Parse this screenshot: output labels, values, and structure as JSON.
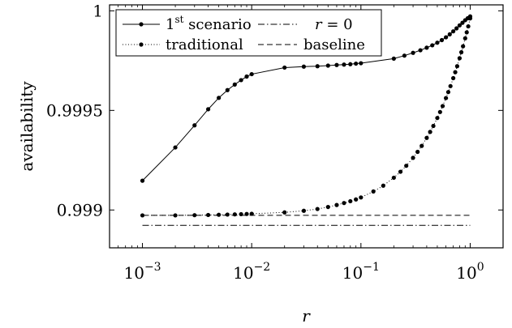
{
  "chart_data": {
    "type": "line",
    "xlabel": "r",
    "ylabel": "availability",
    "xscale": "log",
    "xlim": [
      0.0005,
      2.0
    ],
    "ylim": [
      0.99881,
      1.00003
    ],
    "x_ticks": [
      0.001,
      0.01,
      0.1,
      1
    ],
    "x_tick_labels": [
      {
        "base": "10",
        "exp": "−3"
      },
      {
        "base": "10",
        "exp": "−2"
      },
      {
        "base": "10",
        "exp": "−1"
      },
      {
        "base": "10",
        "exp": "0"
      }
    ],
    "y_ticks": [
      0.999,
      0.9995,
      1
    ],
    "y_tick_labels": [
      "0.999",
      "0.9995",
      "1"
    ],
    "grid": false,
    "legend_position": "top-left",
    "legend_columns": 2,
    "series": [
      {
        "name": "1st scenario",
        "legend_main": "1",
        "legend_sup": "st",
        "legend_rest": " scenario",
        "style": "solid-dots",
        "x": [
          0.001,
          0.002,
          0.003,
          0.004,
          0.005,
          0.006,
          0.007,
          0.008,
          0.009,
          0.01,
          0.02,
          0.03,
          0.04,
          0.05,
          0.06,
          0.07,
          0.08,
          0.09,
          0.1,
          0.2,
          0.25,
          0.3,
          0.35,
          0.4,
          0.45,
          0.5,
          0.55,
          0.6,
          0.65,
          0.7,
          0.75,
          0.8,
          0.85,
          0.9,
          0.95,
          1.0
        ],
        "y": [
          0.999147,
          0.999314,
          0.999425,
          0.999506,
          0.999563,
          0.999602,
          0.99963,
          0.999652,
          0.99967,
          0.999682,
          0.999715,
          0.99972,
          0.999722,
          0.999725,
          0.999728,
          0.99973,
          0.999732,
          0.999735,
          0.999737,
          0.99976,
          0.999775,
          0.999789,
          0.999802,
          0.999815,
          0.999827,
          0.99984,
          0.999853,
          0.999867,
          0.999882,
          0.999897,
          0.999912,
          0.999927,
          0.99994,
          0.999953,
          0.999963,
          0.999972
        ]
      },
      {
        "name": "r = 0",
        "legend_italic": "r",
        "legend_rest": " = 0",
        "style": "dash-dot",
        "x": [
          0.001,
          1.0
        ],
        "y": [
          0.998923,
          0.998923
        ]
      },
      {
        "name": "traditional",
        "style": "dotted-dots",
        "x": [
          0.001,
          0.002,
          0.003,
          0.004,
          0.005,
          0.006,
          0.007,
          0.008,
          0.009,
          0.01,
          0.02,
          0.03,
          0.04,
          0.05,
          0.06,
          0.07,
          0.08,
          0.09,
          0.1,
          0.13,
          0.16,
          0.2,
          0.23,
          0.26,
          0.3,
          0.33,
          0.36,
          0.4,
          0.43,
          0.46,
          0.5,
          0.53,
          0.56,
          0.6,
          0.63,
          0.66,
          0.7,
          0.73,
          0.76,
          0.8,
          0.83,
          0.86,
          0.9,
          0.93,
          0.96,
          1.0
        ],
        "y": [
          0.998973,
          0.998973,
          0.998974,
          0.998975,
          0.998976,
          0.998977,
          0.998978,
          0.998979,
          0.99898,
          0.998981,
          0.998988,
          0.998996,
          0.999005,
          0.999015,
          0.999025,
          0.999035,
          0.999044,
          0.999053,
          0.999063,
          0.999093,
          0.999122,
          0.999162,
          0.999192,
          0.999222,
          0.999262,
          0.999292,
          0.999322,
          0.999362,
          0.999392,
          0.999422,
          0.999462,
          0.999492,
          0.999522,
          0.999562,
          0.999592,
          0.999622,
          0.999662,
          0.999692,
          0.999722,
          0.999762,
          0.999792,
          0.999822,
          0.999862,
          0.999892,
          0.999922,
          0.999962
        ]
      },
      {
        "name": "baseline",
        "style": "dashed",
        "x": [
          0.001,
          1.0
        ],
        "y": [
          0.998973,
          0.998973
        ]
      }
    ]
  }
}
